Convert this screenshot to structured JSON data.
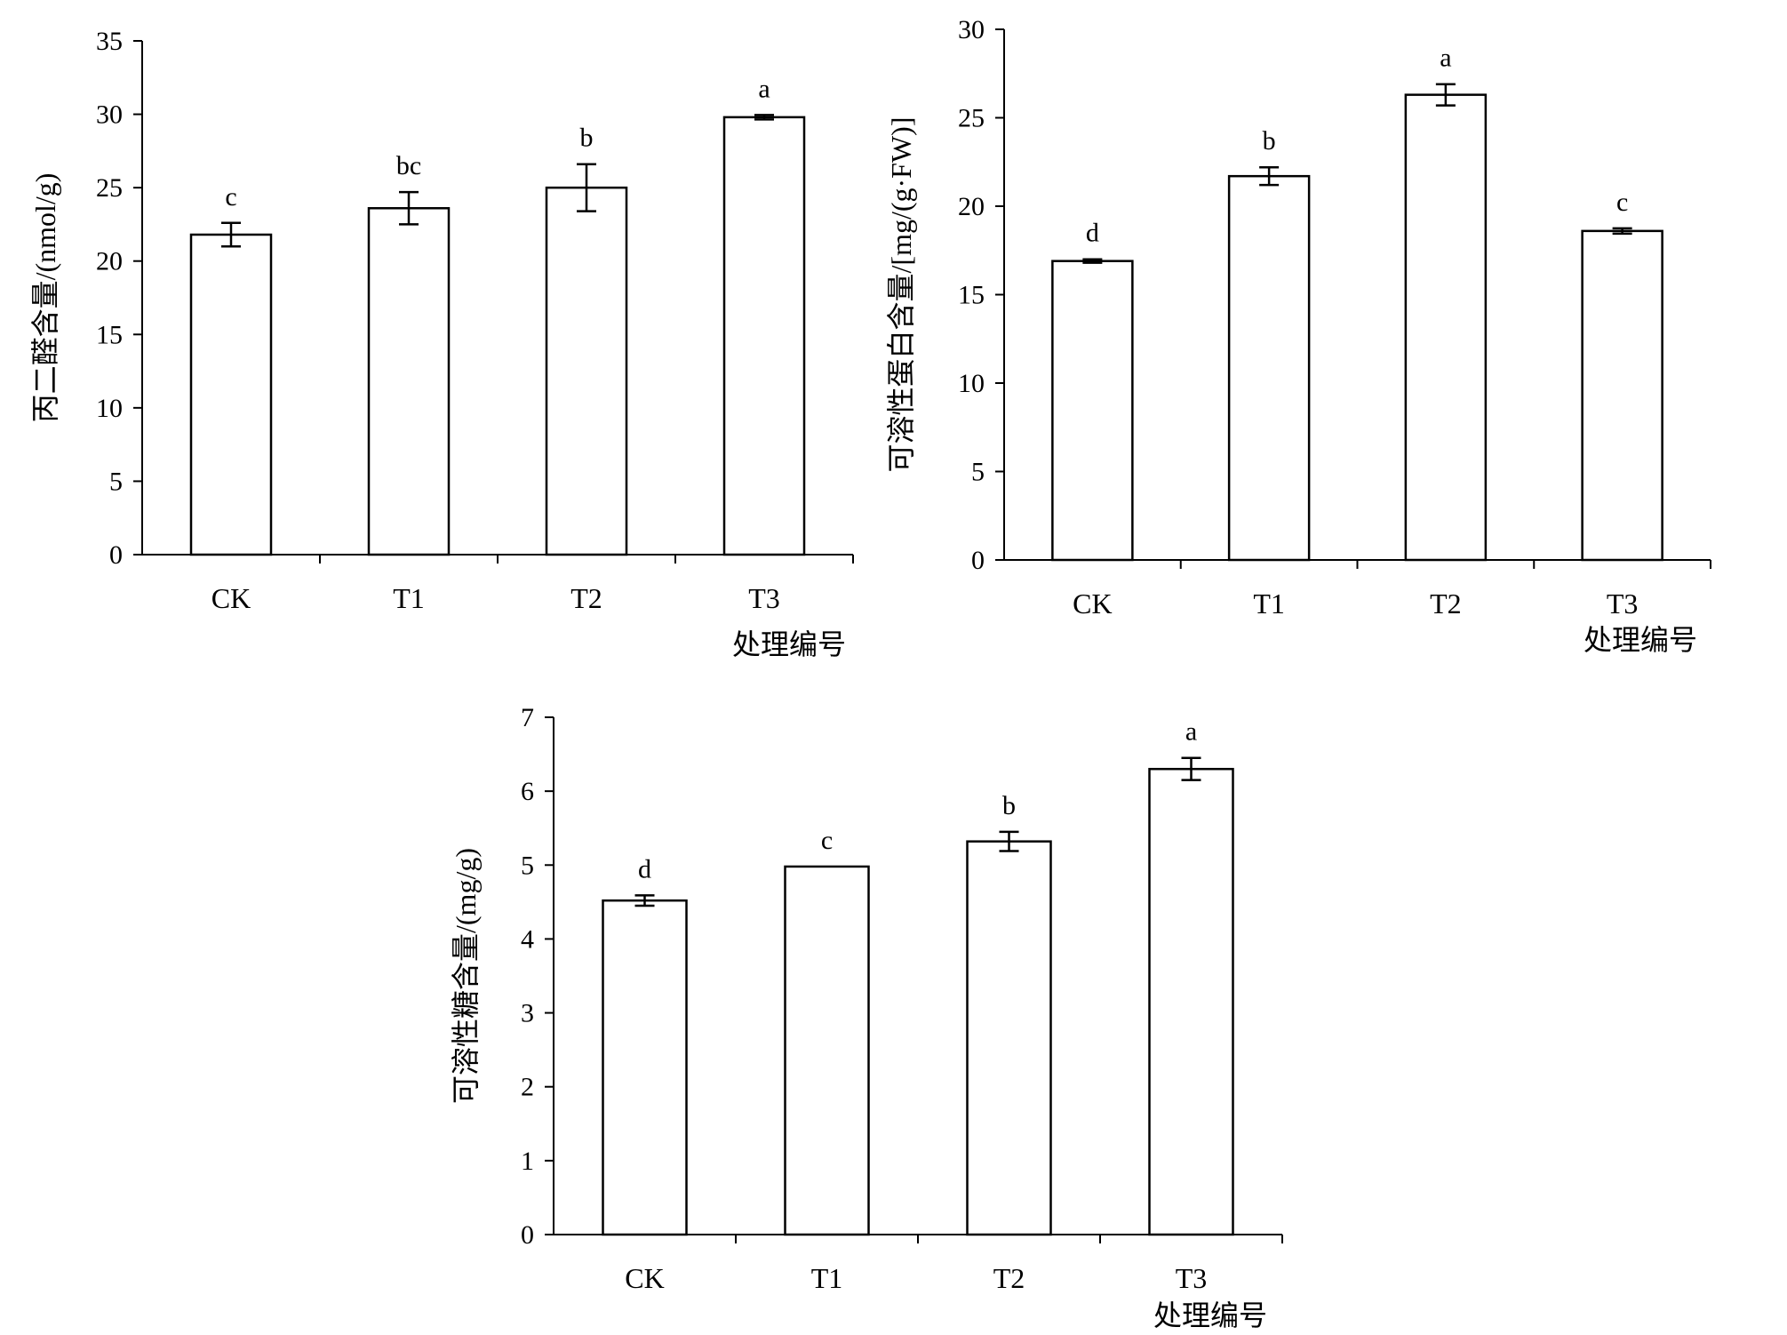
{
  "chart_data": [
    {
      "type": "bar",
      "categories": [
        "CK",
        "T1",
        "T2",
        "T3"
      ],
      "values": [
        21.8,
        23.6,
        25.0,
        29.8
      ],
      "errors": [
        0.8,
        1.1,
        1.6,
        0.15
      ],
      "significance": [
        "c",
        "bc",
        "b",
        "a"
      ],
      "ylabel": "丙二醛含量/(nmol/g)",
      "xlabel": "处理编号",
      "ylim": [
        0,
        35
      ],
      "yticks": [
        0,
        5,
        10,
        15,
        20,
        25,
        30,
        35
      ],
      "grid": false
    },
    {
      "type": "bar",
      "categories": [
        "CK",
        "T1",
        "T2",
        "T3"
      ],
      "values": [
        16.9,
        21.7,
        26.3,
        18.6
      ],
      "errors": [
        0.1,
        0.5,
        0.6,
        0.15
      ],
      "significance": [
        "d",
        "b",
        "a",
        "c"
      ],
      "ylabel": "可溶性蛋白含量/[mg/(g·FW)]",
      "xlabel": "处理编号",
      "ylim": [
        0,
        30
      ],
      "yticks": [
        0,
        5,
        10,
        15,
        20,
        25,
        30
      ],
      "grid": false
    },
    {
      "type": "bar",
      "categories": [
        "CK",
        "T1",
        "T2",
        "T3"
      ],
      "values": [
        4.52,
        4.98,
        5.32,
        6.3
      ],
      "errors": [
        0.07,
        0.0,
        0.13,
        0.15
      ],
      "significance": [
        "d",
        "c",
        "b",
        "a"
      ],
      "ylabel": "可溶性糖含量/(mg/g)",
      "xlabel": "处理编号",
      "ylim": [
        0,
        7
      ],
      "yticks": [
        0,
        1,
        2,
        3,
        4,
        5,
        6,
        7
      ],
      "grid": false
    }
  ]
}
